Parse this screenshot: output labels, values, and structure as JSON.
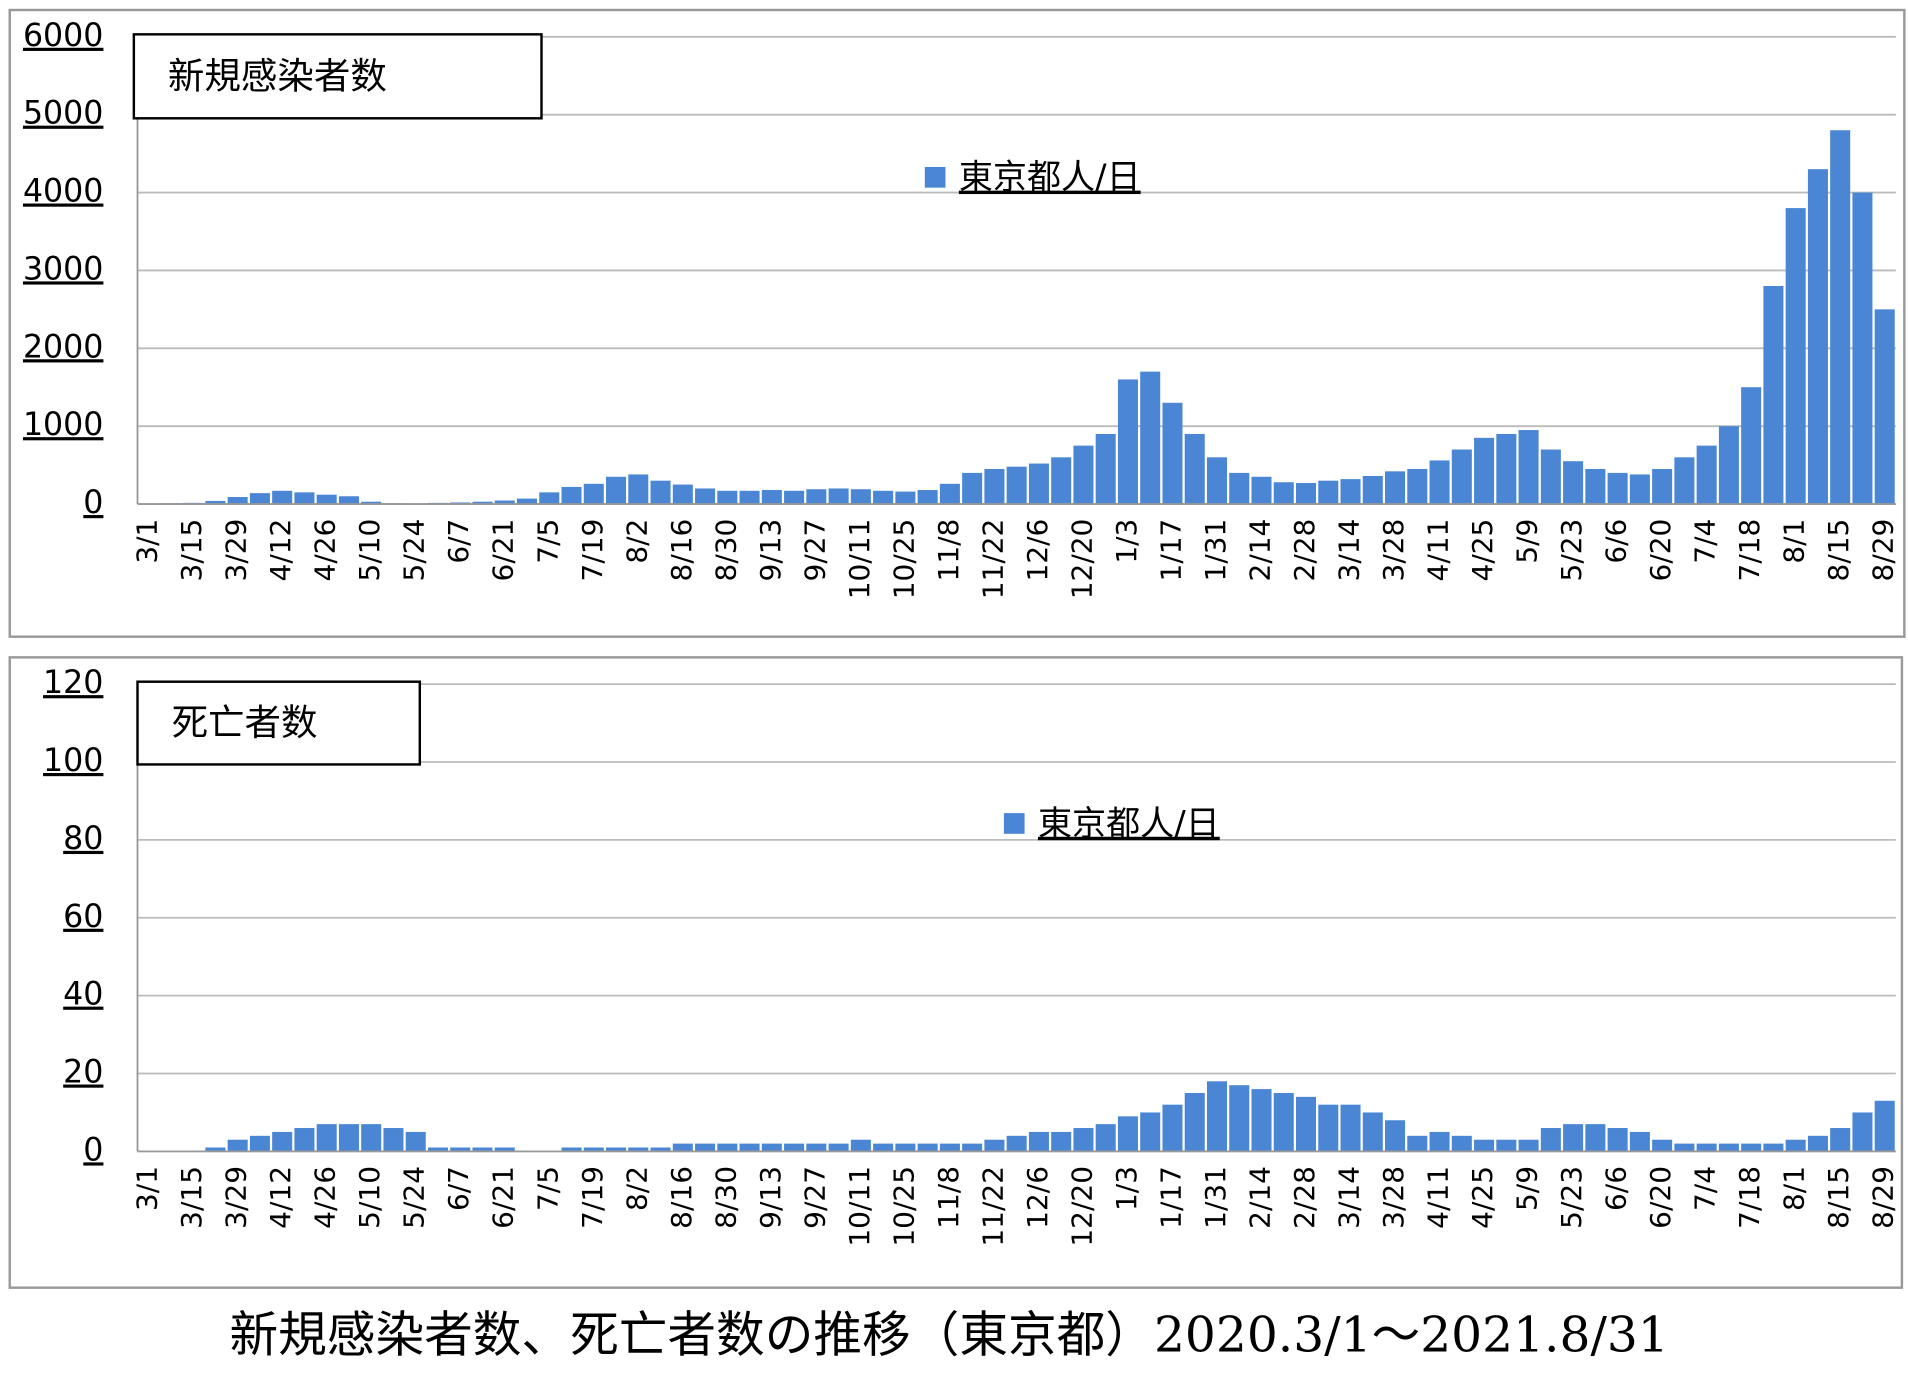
{
  "chart_data": [
    {
      "type": "bar",
      "title": "新規感染者数",
      "categories": [
        "3/1",
        null,
        "3/15",
        null,
        "3/29",
        null,
        "4/12",
        null,
        "4/26",
        null,
        "5/10",
        null,
        "5/24",
        null,
        "6/7",
        null,
        "6/21",
        null,
        "7/5",
        null,
        "7/19",
        null,
        "8/2",
        null,
        "8/16",
        null,
        "8/30",
        null,
        "9/13",
        null,
        "9/27",
        null,
        "10/11",
        null,
        "10/25",
        null,
        "11/8",
        null,
        "11/22",
        null,
        "12/6",
        null,
        "12/20",
        null,
        "1/3",
        null,
        "1/17",
        null,
        "1/31",
        null,
        "2/14",
        null,
        "2/28",
        null,
        "3/14",
        null,
        "3/28",
        null,
        "4/11",
        null,
        "4/25",
        null,
        "5/9",
        null,
        "5/23",
        null,
        "6/6",
        null,
        "6/20",
        null,
        "7/4",
        null,
        "7/18",
        null,
        "8/1",
        null,
        "8/15",
        null,
        "8/29"
      ],
      "series": [
        {
          "name": "東京都人/日",
          "color": "#4a86d4",
          "values": [
            5,
            10,
            15,
            40,
            90,
            140,
            170,
            150,
            120,
            100,
            30,
            10,
            8,
            15,
            20,
            30,
            45,
            70,
            150,
            220,
            260,
            350,
            380,
            300,
            250,
            200,
            170,
            170,
            180,
            170,
            190,
            200,
            190,
            170,
            160,
            180,
            260,
            400,
            450,
            480,
            520,
            600,
            750,
            900,
            1600,
            1700,
            1300,
            900,
            600,
            400,
            350,
            280,
            270,
            300,
            320,
            360,
            420,
            450,
            560,
            700,
            850,
            900,
            950,
            700,
            550,
            450,
            400,
            380,
            450,
            600,
            750,
            1000,
            1500,
            2800,
            3800,
            4300,
            4800,
            4000,
            2500
          ]
        }
      ],
      "ylim": [
        0,
        6000
      ],
      "yticks": [
        0,
        1000,
        2000,
        3000,
        4000,
        5000,
        6000
      ],
      "grid": true
    },
    {
      "type": "bar",
      "title": "死亡者数",
      "categories": [
        "3/1",
        null,
        "3/15",
        null,
        "3/29",
        null,
        "4/12",
        null,
        "4/26",
        null,
        "5/10",
        null,
        "5/24",
        null,
        "6/7",
        null,
        "6/21",
        null,
        "7/5",
        null,
        "7/19",
        null,
        "8/2",
        null,
        "8/16",
        null,
        "8/30",
        null,
        "9/13",
        null,
        "9/27",
        null,
        "10/11",
        null,
        "10/25",
        null,
        "11/8",
        null,
        "11/22",
        null,
        "12/6",
        null,
        "12/20",
        null,
        "1/3",
        null,
        "1/17",
        null,
        "1/31",
        null,
        "2/14",
        null,
        "2/28",
        null,
        "3/14",
        null,
        "3/28",
        null,
        "4/11",
        null,
        "4/25",
        null,
        "5/9",
        null,
        "5/23",
        null,
        "6/6",
        null,
        "6/20",
        null,
        "7/4",
        null,
        "7/18",
        null,
        "8/1",
        null,
        "8/15",
        null,
        "8/29"
      ],
      "series": [
        {
          "name": "東京都人/日",
          "color": "#4a86d4",
          "values": [
            0,
            0,
            0,
            1,
            3,
            4,
            5,
            6,
            7,
            7,
            7,
            6,
            5,
            1,
            1,
            1,
            1,
            0,
            0,
            1,
            1,
            1,
            1,
            1,
            2,
            2,
            2,
            2,
            2,
            2,
            2,
            2,
            3,
            2,
            2,
            2,
            2,
            2,
            3,
            4,
            5,
            5,
            6,
            7,
            9,
            10,
            12,
            15,
            18,
            17,
            16,
            15,
            14,
            12,
            12,
            10,
            8,
            4,
            5,
            4,
            3,
            3,
            3,
            6,
            7,
            7,
            6,
            5,
            3,
            2,
            2,
            2,
            2,
            2,
            3,
            4,
            6,
            10,
            13
          ]
        }
      ],
      "ylim": [
        0,
        120
      ],
      "yticks": [
        0,
        20,
        40,
        60,
        80,
        100,
        120
      ],
      "grid": true
    }
  ],
  "caption": "新規感染者数、死亡者数の推移（東京都）2020.3/1～2021.8/31"
}
